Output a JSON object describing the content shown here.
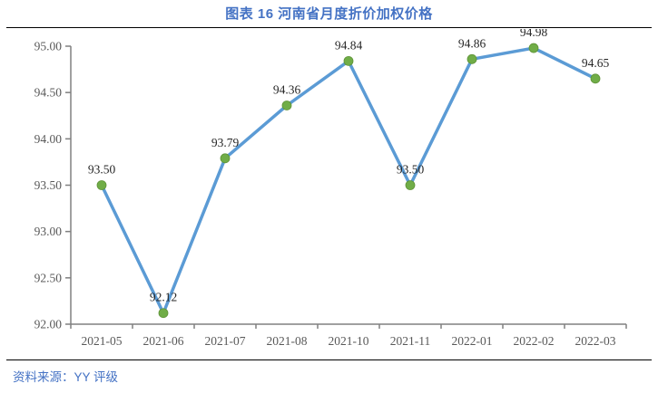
{
  "title": "图表  16 河南省月度折价加权价格",
  "source": "资料来源：YY 评级",
  "colors": {
    "title": "#4472C4",
    "source": "#4472C4",
    "line": "#5B9BD5",
    "marker_fill": "#70AD47",
    "marker_edge": "#5f9338",
    "axis": "#808080",
    "axis_label": "#595959",
    "data_label": "#262626",
    "rule": "#000000"
  },
  "chart_data": {
    "type": "line",
    "title": "图表  16 河南省月度折价加权价格",
    "categories": [
      "2021-05",
      "2021-06",
      "2021-07",
      "2021-08",
      "2021-10",
      "2021-11",
      "2022-01",
      "2022-02",
      "2022-03"
    ],
    "values": [
      93.5,
      92.12,
      93.79,
      94.36,
      94.84,
      93.5,
      94.86,
      94.98,
      94.65
    ],
    "data_labels": [
      "93.50",
      "92.12",
      "93.79",
      "94.36",
      "94.84",
      "93.50",
      "94.86",
      "94.98",
      "94.65"
    ],
    "xlabel": "",
    "ylabel": "",
    "ylim": [
      92.0,
      95.0
    ],
    "ytick_step": 0.5,
    "y_ticks": [
      "92.00",
      "92.50",
      "93.00",
      "93.50",
      "94.00",
      "94.50",
      "95.00"
    ],
    "grid": false,
    "legend": "none",
    "marker": "circle",
    "series_name": "河南省月度折价加权价格"
  }
}
